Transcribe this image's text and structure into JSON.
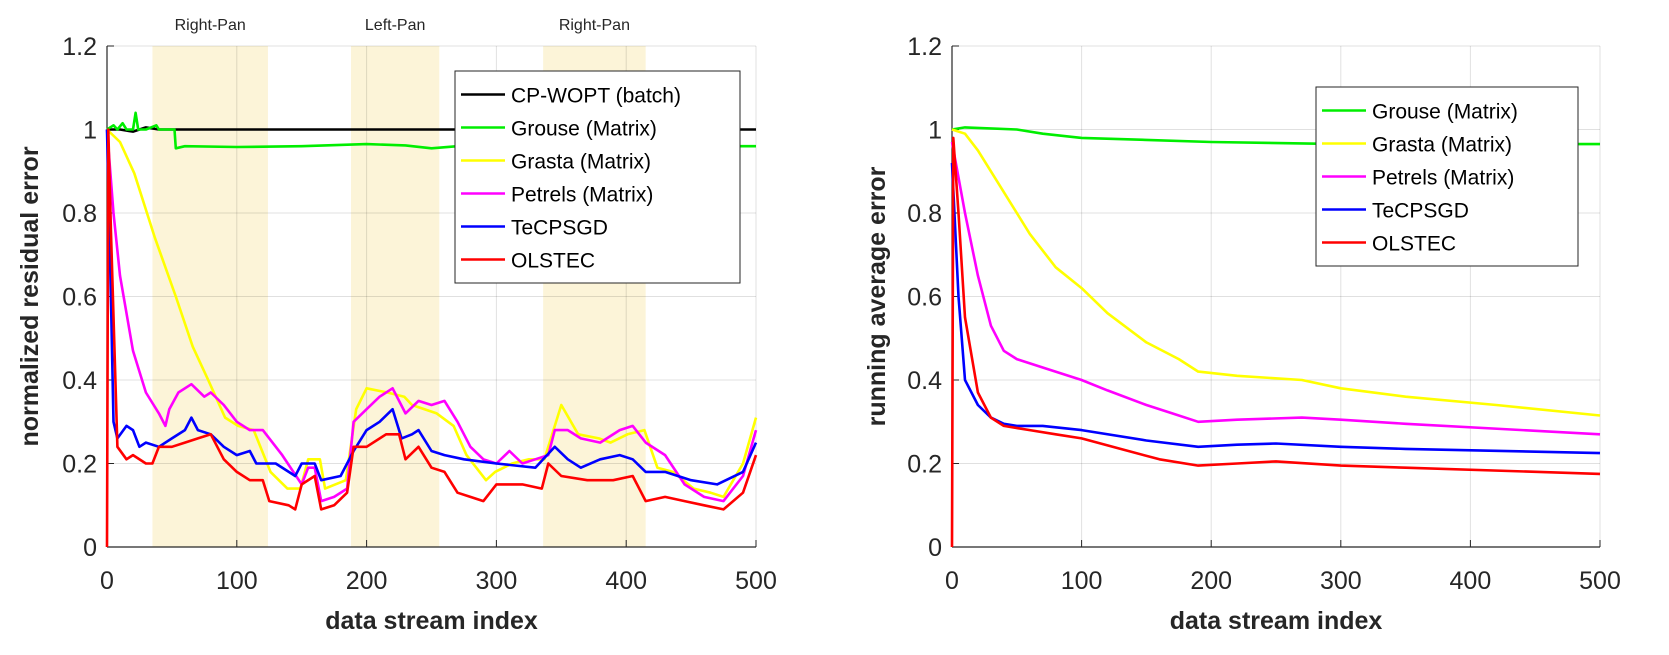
{
  "chart_data": [
    {
      "type": "line",
      "xlabel": "data stream index",
      "ylabel": "normalized residual error",
      "xlim": [
        0,
        500
      ],
      "ylim": [
        0,
        1.2
      ],
      "xticks": [
        "0",
        "100",
        "200",
        "300",
        "400",
        "500"
      ],
      "yticks": [
        "0",
        "0.2",
        "0.4",
        "0.6",
        "0.8",
        "1",
        "1.2"
      ],
      "grid": true,
      "legend_position": "top-right",
      "shaded_regions": [
        {
          "label": "Right-Pan",
          "x": [
            35,
            124
          ],
          "color": "#fcf4d8"
        },
        {
          "label": "Left-Pan",
          "x": [
            188,
            256
          ],
          "color": "#fcf4d8"
        },
        {
          "label": "Right-Pan",
          "x": [
            336,
            415
          ],
          "color": "#fcf4d8"
        }
      ],
      "series": [
        {
          "name": "CP-WOPT (batch)",
          "color": "#000000",
          "x": [
            0,
            10,
            20,
            30,
            40,
            50,
            60,
            80,
            100,
            150,
            200,
            250,
            300,
            350,
            400,
            450,
            500
          ],
          "y": [
            1.0,
            1.0,
            0.995,
            1.005,
            1.0,
            1.0,
            1.0,
            1.0,
            1.0,
            1.0,
            1.0,
            1.0,
            1.0,
            1.0,
            1.0,
            1.0,
            1.0
          ]
        },
        {
          "name": "Grouse (Matrix)",
          "color": "#00ee00",
          "x": [
            0,
            5,
            8,
            12,
            15,
            20,
            22,
            24,
            30,
            38,
            40,
            52,
            53,
            60,
            100,
            150,
            200,
            230,
            250,
            270,
            300,
            400,
            500
          ],
          "y": [
            1.0,
            1.01,
            1.0,
            1.015,
            1.0,
            1.0,
            1.04,
            1.0,
            1.0,
            1.01,
            1.0,
            1.0,
            0.955,
            0.96,
            0.958,
            0.96,
            0.965,
            0.962,
            0.955,
            0.96,
            0.96,
            0.96,
            0.96
          ]
        },
        {
          "name": "Grasta (Matrix)",
          "color": "#ffff00",
          "x": [
            0,
            10,
            21,
            37,
            53,
            66,
            78,
            91,
            101,
            113,
            126,
            139,
            149,
            155,
            164,
            168,
            184,
            192,
            200,
            216,
            229,
            235,
            254,
            267,
            277,
            292,
            299,
            312,
            325,
            337,
            350,
            363,
            379,
            388,
            401,
            414,
            424,
            436,
            452,
            465,
            475,
            490,
            500
          ],
          "y": [
            1.0,
            0.97,
            0.895,
            0.74,
            0.6,
            0.48,
            0.4,
            0.31,
            0.29,
            0.28,
            0.18,
            0.14,
            0.14,
            0.21,
            0.21,
            0.14,
            0.16,
            0.33,
            0.38,
            0.37,
            0.36,
            0.34,
            0.32,
            0.29,
            0.22,
            0.16,
            0.18,
            0.2,
            0.21,
            0.21,
            0.34,
            0.27,
            0.26,
            0.25,
            0.27,
            0.28,
            0.19,
            0.18,
            0.14,
            0.13,
            0.12,
            0.2,
            0.31
          ]
        },
        {
          "name": "Petrels (Matrix)",
          "color": "#ff00ff",
          "x": [
            0,
            5,
            10,
            20,
            30,
            40,
            45,
            48,
            55,
            65,
            75,
            80,
            90,
            100,
            110,
            120,
            135,
            150,
            155,
            160,
            165,
            175,
            185,
            190,
            200,
            210,
            220,
            230,
            240,
            250,
            260,
            270,
            280,
            290,
            300,
            310,
            320,
            330,
            340,
            345,
            355,
            365,
            380,
            395,
            405,
            415,
            430,
            445,
            460,
            475,
            490,
            500
          ],
          "y": [
            1.0,
            0.8,
            0.65,
            0.47,
            0.37,
            0.32,
            0.29,
            0.33,
            0.37,
            0.39,
            0.36,
            0.37,
            0.34,
            0.3,
            0.28,
            0.28,
            0.22,
            0.15,
            0.19,
            0.19,
            0.11,
            0.12,
            0.14,
            0.3,
            0.33,
            0.36,
            0.38,
            0.32,
            0.35,
            0.34,
            0.35,
            0.3,
            0.24,
            0.21,
            0.2,
            0.23,
            0.2,
            0.21,
            0.22,
            0.28,
            0.28,
            0.26,
            0.25,
            0.28,
            0.29,
            0.25,
            0.22,
            0.15,
            0.12,
            0.11,
            0.17,
            0.28
          ]
        },
        {
          "name": "TeCPSGD",
          "color": "#0000ff",
          "x": [
            0,
            3,
            5,
            8,
            15,
            20,
            25,
            30,
            40,
            50,
            60,
            65,
            70,
            80,
            90,
            100,
            110,
            115,
            130,
            145,
            150,
            160,
            165,
            180,
            190,
            200,
            210,
            220,
            227,
            235,
            240,
            250,
            260,
            275,
            300,
            330,
            345,
            355,
            365,
            380,
            395,
            405,
            415,
            430,
            450,
            470,
            490,
            500
          ],
          "y": [
            1.0,
            0.6,
            0.3,
            0.26,
            0.29,
            0.28,
            0.24,
            0.25,
            0.24,
            0.26,
            0.28,
            0.31,
            0.28,
            0.27,
            0.24,
            0.22,
            0.23,
            0.2,
            0.2,
            0.17,
            0.2,
            0.2,
            0.16,
            0.17,
            0.23,
            0.28,
            0.3,
            0.33,
            0.26,
            0.27,
            0.28,
            0.23,
            0.22,
            0.21,
            0.2,
            0.19,
            0.24,
            0.21,
            0.19,
            0.21,
            0.22,
            0.21,
            0.18,
            0.18,
            0.16,
            0.15,
            0.18,
            0.25
          ]
        },
        {
          "name": "OLSTEC",
          "color": "#ff0000",
          "x": [
            0,
            1,
            3,
            8,
            15,
            20,
            30,
            35,
            40,
            50,
            60,
            70,
            80,
            90,
            100,
            110,
            120,
            125,
            140,
            145,
            150,
            160,
            165,
            175,
            185,
            190,
            200,
            215,
            225,
            230,
            240,
            250,
            260,
            270,
            280,
            290,
            300,
            320,
            335,
            340,
            350,
            370,
            390,
            405,
            415,
            430,
            445,
            460,
            475,
            490,
            500
          ],
          "y": [
            0,
            1.0,
            0.76,
            0.24,
            0.21,
            0.22,
            0.2,
            0.2,
            0.24,
            0.24,
            0.25,
            0.26,
            0.27,
            0.21,
            0.18,
            0.16,
            0.16,
            0.11,
            0.1,
            0.09,
            0.15,
            0.17,
            0.09,
            0.1,
            0.13,
            0.24,
            0.24,
            0.27,
            0.27,
            0.21,
            0.24,
            0.19,
            0.18,
            0.13,
            0.12,
            0.11,
            0.15,
            0.15,
            0.14,
            0.2,
            0.17,
            0.16,
            0.16,
            0.17,
            0.11,
            0.12,
            0.11,
            0.1,
            0.09,
            0.13,
            0.22
          ]
        }
      ]
    },
    {
      "type": "line",
      "xlabel": "data stream index",
      "ylabel": "running average error",
      "xlim": [
        0,
        500
      ],
      "ylim": [
        0,
        1.2
      ],
      "xticks": [
        "0",
        "100",
        "200",
        "300",
        "400",
        "500"
      ],
      "yticks": [
        "0",
        "0.2",
        "0.4",
        "0.6",
        "0.8",
        "1",
        "1.2"
      ],
      "grid": true,
      "legend_position": "top-right",
      "series": [
        {
          "name": "Grouse (Matrix)",
          "color": "#00ee00",
          "x": [
            0,
            10,
            50,
            70,
            100,
            150,
            200,
            300,
            400,
            500
          ],
          "y": [
            1.0,
            1.005,
            1.0,
            0.99,
            0.98,
            0.975,
            0.97,
            0.965,
            0.965,
            0.965
          ]
        },
        {
          "name": "Grasta (Matrix)",
          "color": "#ffff00",
          "x": [
            0,
            10,
            20,
            40,
            60,
            80,
            100,
            120,
            150,
            175,
            190,
            220,
            270,
            300,
            350,
            420,
            500
          ],
          "y": [
            1.0,
            0.99,
            0.95,
            0.85,
            0.75,
            0.67,
            0.62,
            0.56,
            0.49,
            0.45,
            0.42,
            0.41,
            0.4,
            0.38,
            0.36,
            0.34,
            0.315
          ]
        },
        {
          "name": "Petrels (Matrix)",
          "color": "#ff00ff",
          "x": [
            0,
            10,
            20,
            30,
            40,
            50,
            70,
            100,
            120,
            150,
            170,
            190,
            220,
            270,
            300,
            350,
            500
          ],
          "y": [
            0.97,
            0.8,
            0.65,
            0.53,
            0.47,
            0.45,
            0.43,
            0.4,
            0.375,
            0.34,
            0.32,
            0.3,
            0.305,
            0.31,
            0.305,
            0.295,
            0.27
          ]
        },
        {
          "name": "TeCPSGD",
          "color": "#0000ff",
          "x": [
            0,
            5,
            10,
            20,
            30,
            40,
            50,
            70,
            100,
            150,
            190,
            220,
            250,
            300,
            350,
            500
          ],
          "y": [
            0.92,
            0.6,
            0.4,
            0.34,
            0.31,
            0.295,
            0.29,
            0.29,
            0.28,
            0.255,
            0.24,
            0.245,
            0.248,
            0.24,
            0.235,
            0.225
          ]
        },
        {
          "name": "OLSTEC",
          "color": "#ff0000",
          "x": [
            0,
            1,
            5,
            10,
            20,
            30,
            40,
            60,
            80,
            100,
            130,
            160,
            190,
            220,
            250,
            300,
            350,
            500
          ],
          "y": [
            0,
            0.98,
            0.8,
            0.55,
            0.37,
            0.31,
            0.29,
            0.28,
            0.27,
            0.26,
            0.235,
            0.21,
            0.195,
            0.2,
            0.205,
            0.195,
            0.19,
            0.175
          ]
        }
      ]
    }
  ]
}
